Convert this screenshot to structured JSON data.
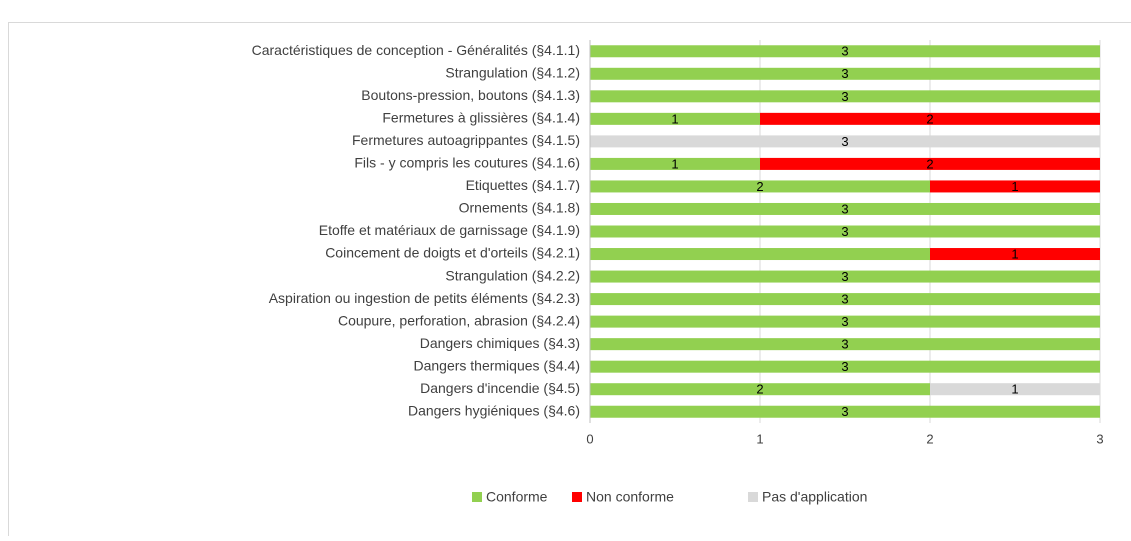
{
  "chart_data": {
    "type": "bar",
    "orientation": "horizontal",
    "stacked": true,
    "categories": [
      "Caractéristiques de conception - Généralités (§4.1.1)",
      "Strangulation (§4.1.2)",
      "Boutons-pression, boutons (§4.1.3)",
      "Fermetures à glissières (§4.1.4)",
      "Fermetures autoagrippantes (§4.1.5)",
      "Fils - y compris les coutures (§4.1.6)",
      "Etiquettes (§4.1.7)",
      "Ornements (§4.1.8)",
      "Etoffe et matériaux de garnissage (§4.1.9)",
      "Coincement de doigts et d'orteils (§4.2.1)",
      "Strangulation (§4.2.2)",
      "Aspiration ou ingestion de petits éléments (§4.2.3)",
      "Coupure, perforation, abrasion (§4.2.4)",
      "Dangers chimiques (§4.3)",
      "Dangers thermiques (§4.4)",
      "Dangers d'incendie (§4.5)",
      "Dangers hygiéniques (§4.6)"
    ],
    "series": [
      {
        "name": "Conforme",
        "color": "#92d050",
        "values": [
          3,
          3,
          3,
          1,
          0,
          1,
          2,
          3,
          3,
          2,
          3,
          3,
          3,
          3,
          3,
          2,
          3
        ],
        "value_labels": [
          "3",
          "3",
          "3",
          "1",
          null,
          "1",
          "2",
          "3",
          "3",
          null,
          "3",
          "3",
          "3",
          "3",
          "3",
          "2",
          "3"
        ]
      },
      {
        "name": "Non conforme",
        "color": "#ff0000",
        "values": [
          0,
          0,
          0,
          2,
          0,
          2,
          1,
          0,
          0,
          1,
          0,
          0,
          0,
          0,
          0,
          0,
          0
        ],
        "value_labels": [
          null,
          null,
          null,
          "2",
          null,
          "2",
          "1",
          null,
          null,
          "1",
          null,
          null,
          null,
          null,
          null,
          null,
          null
        ]
      },
      {
        "name": "Pas d'application",
        "color": "#d9d9d9",
        "values": [
          0,
          0,
          0,
          0,
          3,
          0,
          0,
          0,
          0,
          0,
          0,
          0,
          0,
          0,
          0,
          1,
          0
        ],
        "value_labels": [
          null,
          null,
          null,
          null,
          "3",
          null,
          null,
          null,
          null,
          null,
          null,
          null,
          null,
          null,
          null,
          "1",
          null
        ]
      }
    ],
    "xlim": [
      0,
      3
    ],
    "xticks": [
      0,
      1,
      2,
      3
    ],
    "grid": true,
    "legend": "bottom"
  }
}
